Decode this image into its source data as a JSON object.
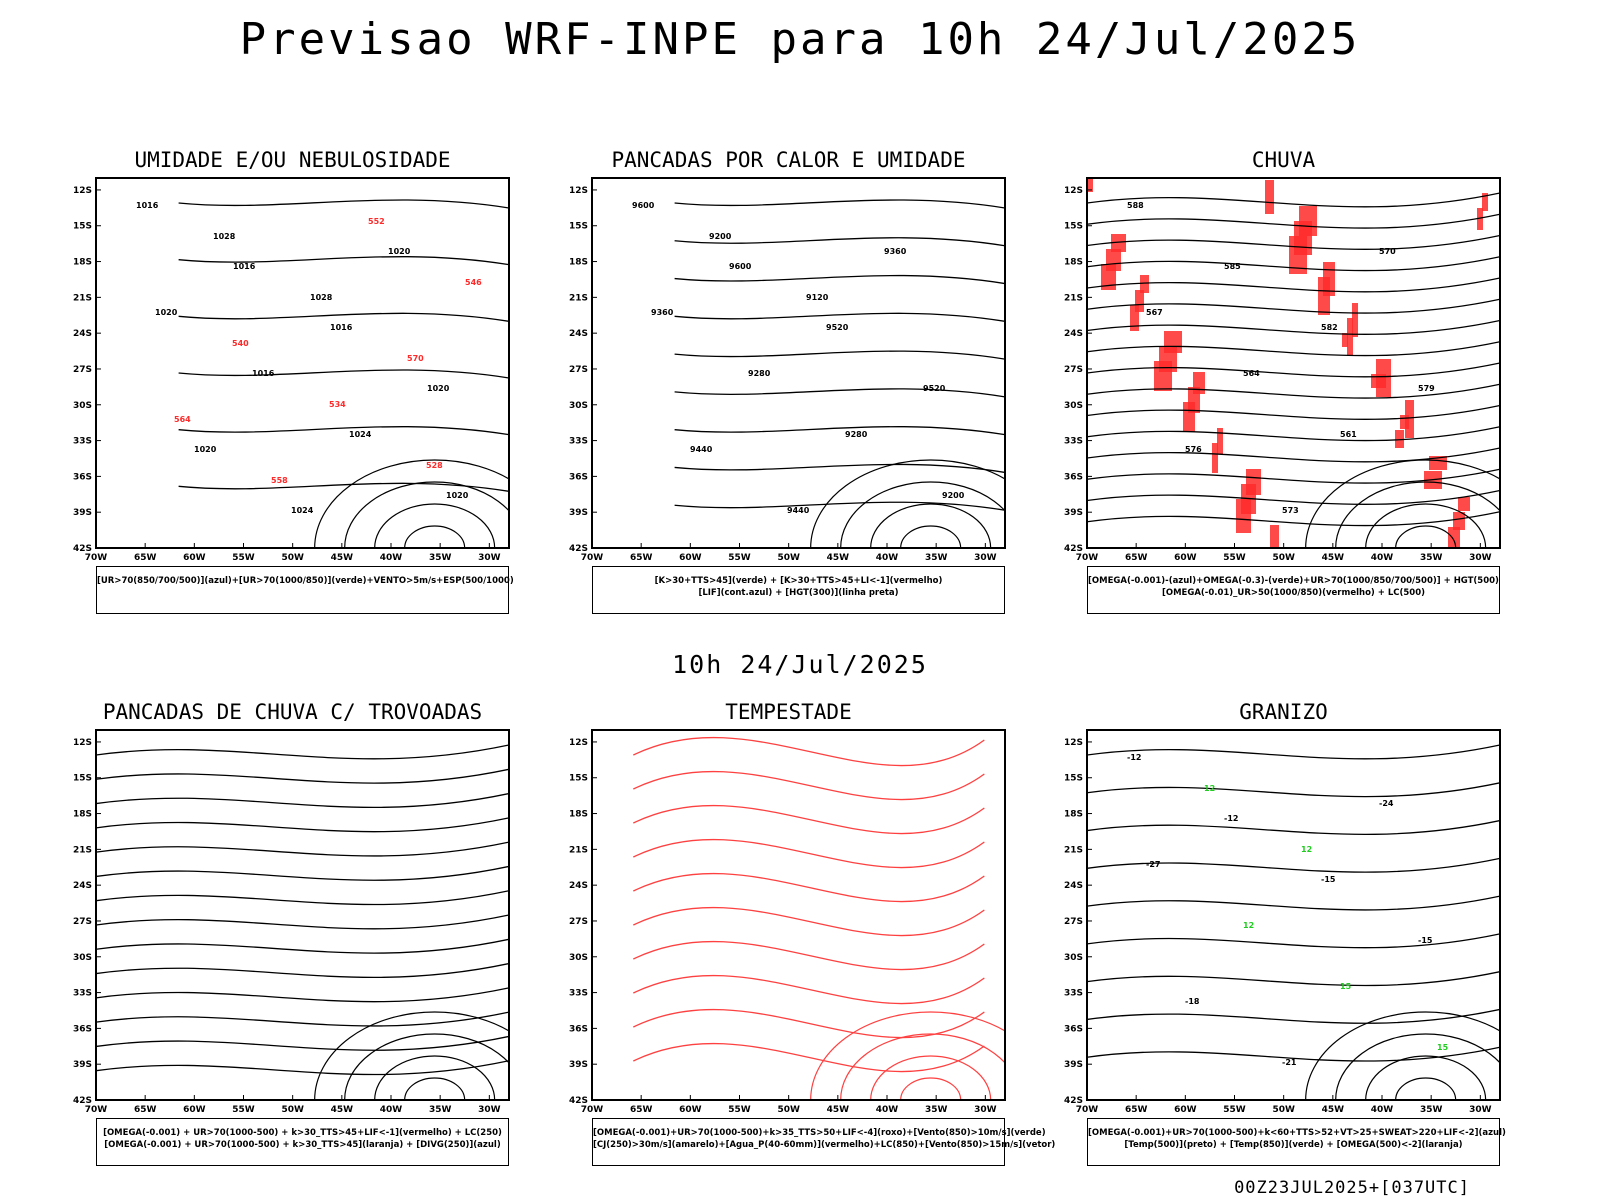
{
  "main_title": "Previsao WRF-INPE  para 10h 24/Jul/2025",
  "sub_title": "10h 24/Jul/2025",
  "footer": "00Z23JUL2025+[037UTC]",
  "axes": {
    "lat_labels": [
      "12S",
      "15S",
      "18S",
      "21S",
      "24S",
      "27S",
      "30S",
      "33S",
      "36S",
      "39S",
      "42S"
    ],
    "lon_labels": [
      "70W",
      "65W",
      "60W",
      "55W",
      "50W",
      "45W",
      "40W",
      "35W",
      "30W"
    ]
  },
  "colors": {
    "black": "#000000",
    "red": "#ff2a2a",
    "green": "#22cc22",
    "blue": "#2244ff",
    "lightblue": "#a8a8ee",
    "darkteal": "#1c4646",
    "yellow": "#e6d92c",
    "orange": "#ee8a22",
    "lineRed": "#ff4040"
  },
  "panels": [
    {
      "id": "umidade",
      "title": "UMIDADE E/OU NEBULOSIDADE",
      "legend": [
        "[UR>70(850/700/500)](azul)+[UR>70(1000/850)](verde)+VENTO>5m/s+ESP(500/1000)"
      ],
      "contour_labels": [
        "1016",
        "1016",
        "1016",
        "1020",
        "1020",
        "1024",
        "1020",
        "1020",
        "1016",
        "1024",
        "1020",
        "1028",
        "1028",
        "570",
        "564",
        "558",
        "552",
        "546",
        "540",
        "534",
        "528"
      ]
    },
    {
      "id": "pancadas-calor",
      "title": "PANCADAS POR CALOR E UMIDADE",
      "legend": [
        "[K>30+TTS>45](verde) + [K>30+TTS>45+LI<-1](vermelho)",
        "[LIF](cont.azul) + [HGT(300)](linha preta)"
      ],
      "contour_labels": [
        "9600",
        "9600",
        "9520",
        "9520",
        "9440",
        "9440",
        "9360",
        "9360",
        "9280",
        "9280",
        "9200",
        "9200",
        "9120"
      ]
    },
    {
      "id": "chuva",
      "title": "CHUVA",
      "legend": [
        "[OMEGA(-0.001)-(azul)+OMEGA(-0.3)-(verde)+UR>70(1000/850/700/500)] + HGT(500)",
        "[OMEGA(-0.01)_UR>50(1000/850)(vermelho) + LC(500)"
      ],
      "contour_labels": [
        "588",
        "585",
        "582",
        "579",
        "576",
        "573",
        "570",
        "567",
        "564",
        "561"
      ]
    },
    {
      "id": "trovoadas",
      "title": "PANCADAS DE CHUVA C/ TROVOADAS",
      "legend": [
        "[OMEGA(-0.001) + UR>70(1000-500) + k>30_TTS>45+LIF<-1](vermelho) + LC(250)",
        "[OMEGA(-0.001) + UR>70(1000-500) + k>30_TTS>45](laranja) + [DIVG(250)](azul)"
      ],
      "contour_labels": []
    },
    {
      "id": "tempestade",
      "title": "TEMPESTADE",
      "legend": [
        "[OMEGA(-0.001)+UR>70(1000-500)+k>35_TTS>50+LIF<-4](roxo)+[Vento(850)>10m/s](verde)",
        "[CJ(250)>30m/s](amarelo)+[Agua_P(40-60mm)](vermelho)+LC(850)+[Vento(850)>15m/s](vetor)"
      ],
      "contour_labels": []
    },
    {
      "id": "granizo",
      "title": "GRANIZO",
      "legend": [
        "[OMEGA(-0.001)+UR>70(1000-500)+k<60+TTS>52+VT>25+SWEAT>220+LIF<-2](azul)",
        "[Temp(500)](preto) + [Temp(850)](verde) + [OMEGA(500)<-2](laranja)"
      ],
      "contour_labels": [
        "-12",
        "-12",
        "-15",
        "-15",
        "-18",
        "-21",
        "-24",
        "-27",
        "12",
        "15",
        "15",
        "12",
        "12"
      ]
    }
  ]
}
